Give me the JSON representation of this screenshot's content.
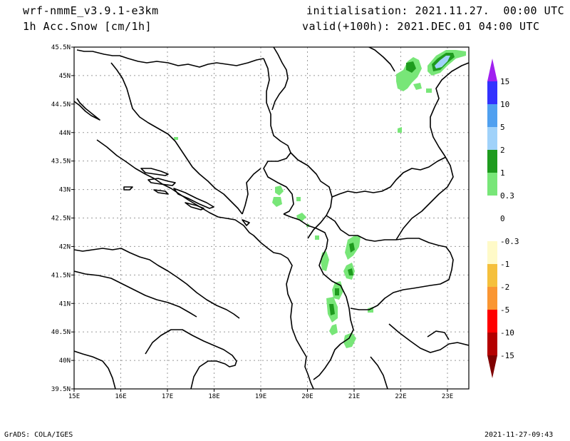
{
  "header": {
    "model": "wrf-nmmE_v3.9.1-e3km",
    "variable": "1h Acc.Snow [cm/1h]",
    "init": "initialisation: 2021.11.27.  00:00 UTC",
    "valid": "valid(+100h): 2021.DEC.01 04:00 UTC"
  },
  "footer": {
    "left": "GrADS: COLA/IGES",
    "right": "2021-11-27-09:43"
  },
  "map": {
    "lat_labels": [
      "45.5N",
      "45N",
      "44.5N",
      "44N",
      "43.5N",
      "43N",
      "42.5N",
      "42N",
      "41.5N",
      "41N",
      "40.5N",
      "40N",
      "39.5N"
    ],
    "lon_labels": [
      "15E",
      "16E",
      "17E",
      "18E",
      "19E",
      "20E",
      "21E",
      "22E",
      "23E"
    ]
  },
  "colorbar": {
    "labels": [
      "15",
      "10",
      "5",
      "2",
      "1",
      "0.3",
      "0",
      "-0.3",
      "-1",
      "-2",
      "-5",
      "-10",
      "-15"
    ],
    "top_arrow_color": "#a020f0",
    "bottom_arrow_color": "#7f0000",
    "bins": [
      {
        "color": "#3232ff"
      },
      {
        "color": "#50a0f0"
      },
      {
        "color": "#a0d2fa"
      },
      {
        "color": "#1e9b1e"
      },
      {
        "color": "#78e678"
      },
      {
        "color": "#ffffff"
      },
      {
        "color": "#ffffff"
      },
      {
        "color": "#fffac8"
      },
      {
        "color": "#f5c03c"
      },
      {
        "color": "#fa9632"
      },
      {
        "color": "#ff0000"
      },
      {
        "color": "#b40000"
      }
    ]
  },
  "colors": {
    "snow_light": "#78e678",
    "snow_mid": "#1e9b1e",
    "snow_heavy": "#a0d2fa",
    "grid": "#9a9a9a",
    "coast": "#000000"
  }
}
